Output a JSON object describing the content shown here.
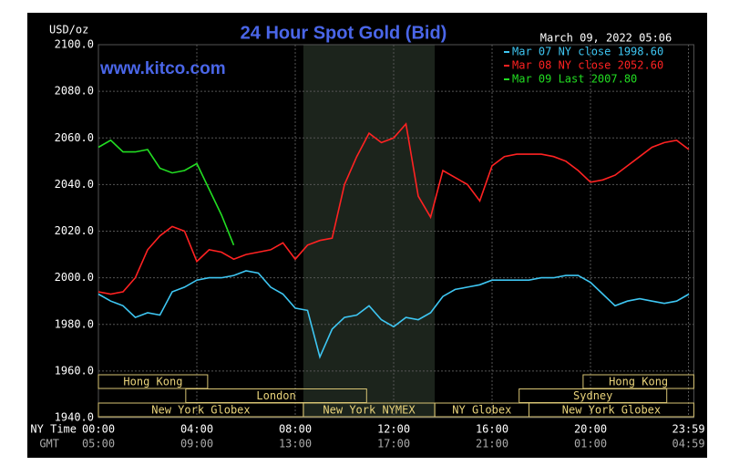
{
  "chart_data": {
    "type": "line",
    "title": "24 Hour Spot Gold (Bid)",
    "subtitle": "March 09, 2022 05:06",
    "watermark": "www.kitco.com",
    "ylabel": "USD/oz",
    "xlabel": "NY Time",
    "x2label": "GMT",
    "xlim": [
      0,
      24.2
    ],
    "ylim": [
      1940,
      2100
    ],
    "xticks": [
      {
        "value": 0,
        "label": "00:00"
      },
      {
        "value": 4,
        "label": "04:00"
      },
      {
        "value": 8,
        "label": "08:00"
      },
      {
        "value": 12,
        "label": "12:00"
      },
      {
        "value": 16,
        "label": "16:00"
      },
      {
        "value": 20,
        "label": "20:00"
      },
      {
        "value": 23.983,
        "label": "23:59"
      }
    ],
    "x2ticks": [
      {
        "value": 0,
        "label": "05:00"
      },
      {
        "value": 4,
        "label": "09:00"
      },
      {
        "value": 8,
        "label": "13:00"
      },
      {
        "value": 12,
        "label": "17:00"
      },
      {
        "value": 16,
        "label": "21:00"
      },
      {
        "value": 20,
        "label": "01:00"
      },
      {
        "value": 23.983,
        "label": "04:59"
      }
    ],
    "yticks": [
      {
        "value": 1940,
        "label": "1940.0"
      },
      {
        "value": 1960,
        "label": "1960.0"
      },
      {
        "value": 1980,
        "label": "1980.0"
      },
      {
        "value": 2000,
        "label": "2000.0"
      },
      {
        "value": 2020,
        "label": "2020.0"
      },
      {
        "value": 2040,
        "label": "2040.0"
      },
      {
        "value": 2060,
        "label": "2060.0"
      },
      {
        "value": 2080,
        "label": "2080.0"
      },
      {
        "value": 2100,
        "label": "2100.0"
      }
    ],
    "grid": true,
    "legend": "top-right",
    "sessions": [
      [
        {
          "label": "Hong Kong",
          "start": 0,
          "end": 4.44
        },
        {
          "label": "Hong Kong",
          "start": 19.7,
          "end": 24.2
        }
      ],
      [
        {
          "label": "London",
          "start": 3.55,
          "end": 10.9
        },
        {
          "label": "Sydney",
          "start": 17.1,
          "end": 23.1
        }
      ],
      [
        {
          "label": "New York Globex",
          "start": 0,
          "end": 8.33
        },
        {
          "label": "New York NYMEX",
          "start": 8.33,
          "end": 13.67
        },
        {
          "label": "NY Globex",
          "start": 13.67,
          "end": 17.5
        },
        {
          "label": "New York Globex",
          "start": 17.5,
          "end": 24.2
        }
      ]
    ],
    "x": [
      0,
      0.5,
      1,
      1.5,
      2,
      2.5,
      3,
      3.5,
      4,
      4.5,
      5,
      5.5,
      6,
      6.5,
      7,
      7.5,
      8,
      8.5,
      9,
      9.5,
      10,
      10.5,
      11,
      11.5,
      12,
      12.5,
      13,
      13.5,
      14,
      14.5,
      15,
      15.5,
      16,
      16.5,
      17,
      17.5,
      18,
      18.5,
      19,
      19.5,
      20,
      20.5,
      21,
      21.5,
      22,
      22.5,
      23,
      23.5,
      24
    ],
    "series": [
      {
        "name": "Mar 07 NY close 1998.60",
        "color": "#3ec6f2",
        "values": [
          1993,
          1990,
          1988,
          1983,
          1985,
          1984,
          1994,
          1996,
          1999,
          2000,
          2000,
          2001,
          2003,
          2002,
          1996,
          1993,
          1987,
          1986,
          1966,
          1978,
          1983,
          1984,
          1988,
          1982,
          1979,
          1983,
          1982,
          1985,
          1992,
          1995,
          1996,
          1997,
          1999,
          1999,
          1999,
          1999,
          2000,
          2000,
          2001,
          2001,
          1998,
          1993,
          1988,
          1990,
          1991,
          1990,
          1989,
          1990,
          1993
        ]
      },
      {
        "name": "Mar 08 NY close 2052.60",
        "color": "#ff2222",
        "values": [
          1994,
          1993,
          1994,
          2000,
          2012,
          2018,
          2022,
          2020,
          2007,
          2012,
          2011,
          2008,
          2010,
          2011,
          2012,
          2015,
          2008,
          2014,
          2016,
          2017,
          2040,
          2052,
          2062,
          2058,
          2060,
          2066,
          2035,
          2026,
          2046,
          2043,
          2040,
          2033,
          2048,
          2052,
          2053,
          2053,
          2053,
          2052,
          2050,
          2046,
          2041,
          2042,
          2044,
          2048,
          2052,
          2056,
          2058,
          2059,
          2055
        ]
      },
      {
        "name": "Mar 09 Last 2007.80",
        "color": "#22dd22",
        "values": [
          2056,
          2059,
          2054,
          2054,
          2055,
          2047,
          2045,
          2046,
          2049,
          2038,
          2027,
          2014,
          null,
          null,
          null,
          null,
          null,
          null,
          null,
          null,
          null,
          null,
          null,
          null,
          null,
          null,
          null,
          null,
          null,
          null,
          null,
          null,
          null,
          null,
          null,
          null,
          null,
          null,
          null,
          null,
          null,
          null,
          null,
          null,
          null,
          null,
          null,
          null,
          null
        ]
      }
    ]
  }
}
